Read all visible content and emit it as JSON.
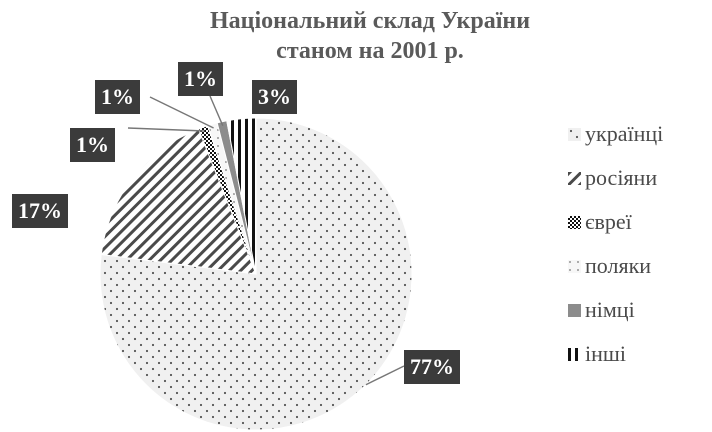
{
  "chart_data": {
    "type": "pie",
    "title": [
      "Національний склад України",
      "станом на 2001 р."
    ],
    "categories": [
      "українці",
      "росіяни",
      "євреї",
      "поляки",
      "німці",
      "інші"
    ],
    "values": [
      77,
      17,
      1,
      1,
      1,
      3
    ],
    "value_labels": [
      "77%",
      "17%",
      "1%",
      "1%",
      "1%",
      "3%"
    ],
    "patterns": [
      "dots",
      "diagonal-hatch",
      "checker",
      "dots-light",
      "solid-gray",
      "vertical-stripes"
    ],
    "legend_position": "right",
    "colors": {
      "background": "#ffffff",
      "title": "#5a5a5a",
      "label_box": "#3b3b3b",
      "label_text": "#ffffff",
      "slice_fill": "#f0f0f0",
      "pattern": "#555555"
    }
  }
}
